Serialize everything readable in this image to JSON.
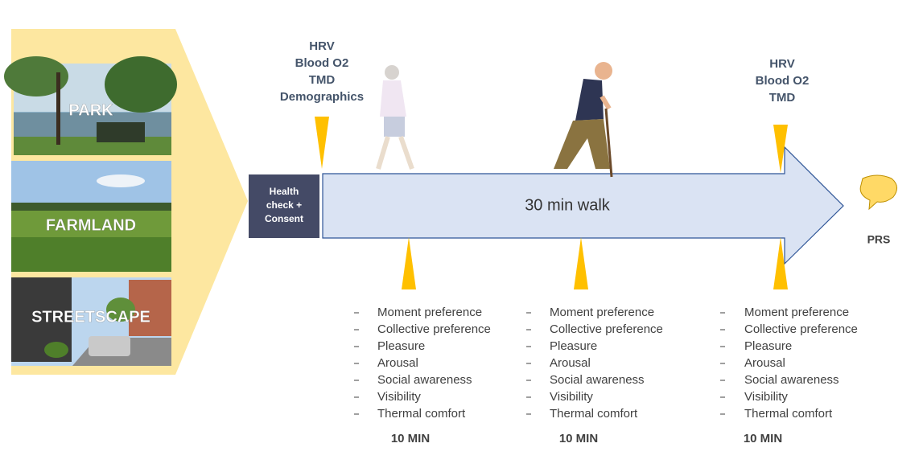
{
  "environments": [
    "PARK",
    "FARMLAND",
    "STREETSCAPE"
  ],
  "health_check": [
    "Health",
    "check +",
    "Consent"
  ],
  "pre_measures": [
    "HRV",
    "Blood O2",
    "TMD",
    "Demographics"
  ],
  "post_measures": [
    "HRV",
    "Blood O2",
    "TMD"
  ],
  "walk_label": "30 min walk",
  "end_label": "PRS",
  "checkpoints": [
    {
      "items": [
        "Moment preference",
        "Collective preference",
        "Pleasure",
        "Arousal",
        "Social awareness",
        "Visibility",
        "Thermal comfort"
      ],
      "duration": "10 MIN"
    },
    {
      "items": [
        "Moment preference",
        "Collective preference",
        "Pleasure",
        "Arousal",
        "Social awareness",
        "Visibility",
        "Thermal comfort"
      ],
      "duration": "10 MIN"
    },
    {
      "items": [
        "Moment preference",
        "Collective preference",
        "Pleasure",
        "Arousal",
        "Social awareness",
        "Visibility",
        "Thermal comfort"
      ],
      "duration": "10 MIN"
    }
  ]
}
